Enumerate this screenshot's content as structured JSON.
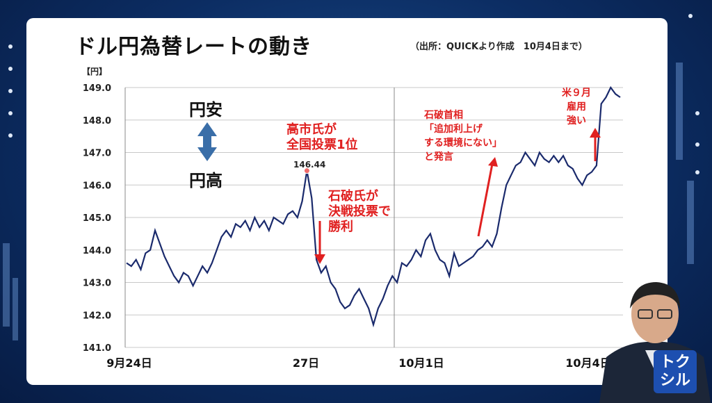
{
  "title": "ドル円為替レートの動き",
  "source": "（出所：QUICKより作成　10月4日まで）",
  "y_unit": "【円】",
  "annotations": {
    "weak_yen": "円安",
    "strong_yen": "円高",
    "takaichi": [
      "高市氏が",
      "全国投票1位"
    ],
    "peak_value": "146.44",
    "ishiba_win": [
      "石破氏が",
      "決戦投票で",
      "勝利"
    ],
    "ishiba_remark": [
      "石破首相",
      "「追加利上げ",
      "する環境にない」",
      "と発言"
    ],
    "us_jobs": [
      "米９月",
      "雇用",
      "強い"
    ]
  },
  "colors": {
    "line": "#1a2a6c",
    "accent_red": "#e02020",
    "arrow_blue": "#3a6ea8"
  },
  "logo_text": "トクシル",
  "chart_data": {
    "type": "line",
    "title": "ドル円為替レートの動き",
    "ylabel": "【円】",
    "ylim": [
      141.0,
      149.0
    ],
    "y_ticks": [
      "149.0",
      "148.0",
      "147.0",
      "146.0",
      "145.0",
      "144.0",
      "143.0",
      "142.0",
      "141.0"
    ],
    "x_tick_labels": [
      "9月24日",
      "27日",
      "10月1日",
      "10月4日"
    ],
    "grid": true,
    "series": [
      {
        "values": [
          143.6,
          143.5,
          143.7,
          143.4,
          143.9,
          144.0,
          144.6,
          144.2,
          143.8,
          143.5,
          143.2,
          143.0,
          143.3,
          143.2,
          142.9,
          143.2,
          143.5,
          143.3,
          143.6,
          144.0,
          144.4,
          144.6,
          144.4,
          144.8,
          144.7,
          144.9,
          144.6,
          145.0,
          144.7,
          144.9,
          144.6,
          145.0,
          144.9,
          144.8,
          145.1,
          145.2,
          145.0,
          145.5,
          146.44,
          145.6,
          143.7,
          143.3,
          143.5,
          143.0,
          142.8,
          142.4,
          142.2,
          142.3,
          142.6,
          142.8,
          142.5,
          142.2,
          141.7,
          142.2,
          142.5,
          142.9,
          143.2,
          143.0,
          143.6,
          143.5,
          143.7,
          144.0,
          143.8,
          144.3,
          144.5,
          144.0,
          143.7,
          143.6,
          143.2,
          143.9,
          143.5,
          143.6,
          143.7,
          143.8,
          144.0,
          144.1,
          144.3,
          144.1,
          144.5,
          145.3,
          146.0,
          146.3,
          146.6,
          146.7,
          147.0,
          146.8,
          146.6,
          147.0,
          146.8,
          146.7,
          146.9,
          146.7,
          146.9,
          146.6,
          146.5,
          146.2,
          146.0,
          146.3,
          146.4,
          146.6,
          148.5,
          148.7,
          149.0,
          148.8,
          148.7
        ]
      }
    ]
  }
}
